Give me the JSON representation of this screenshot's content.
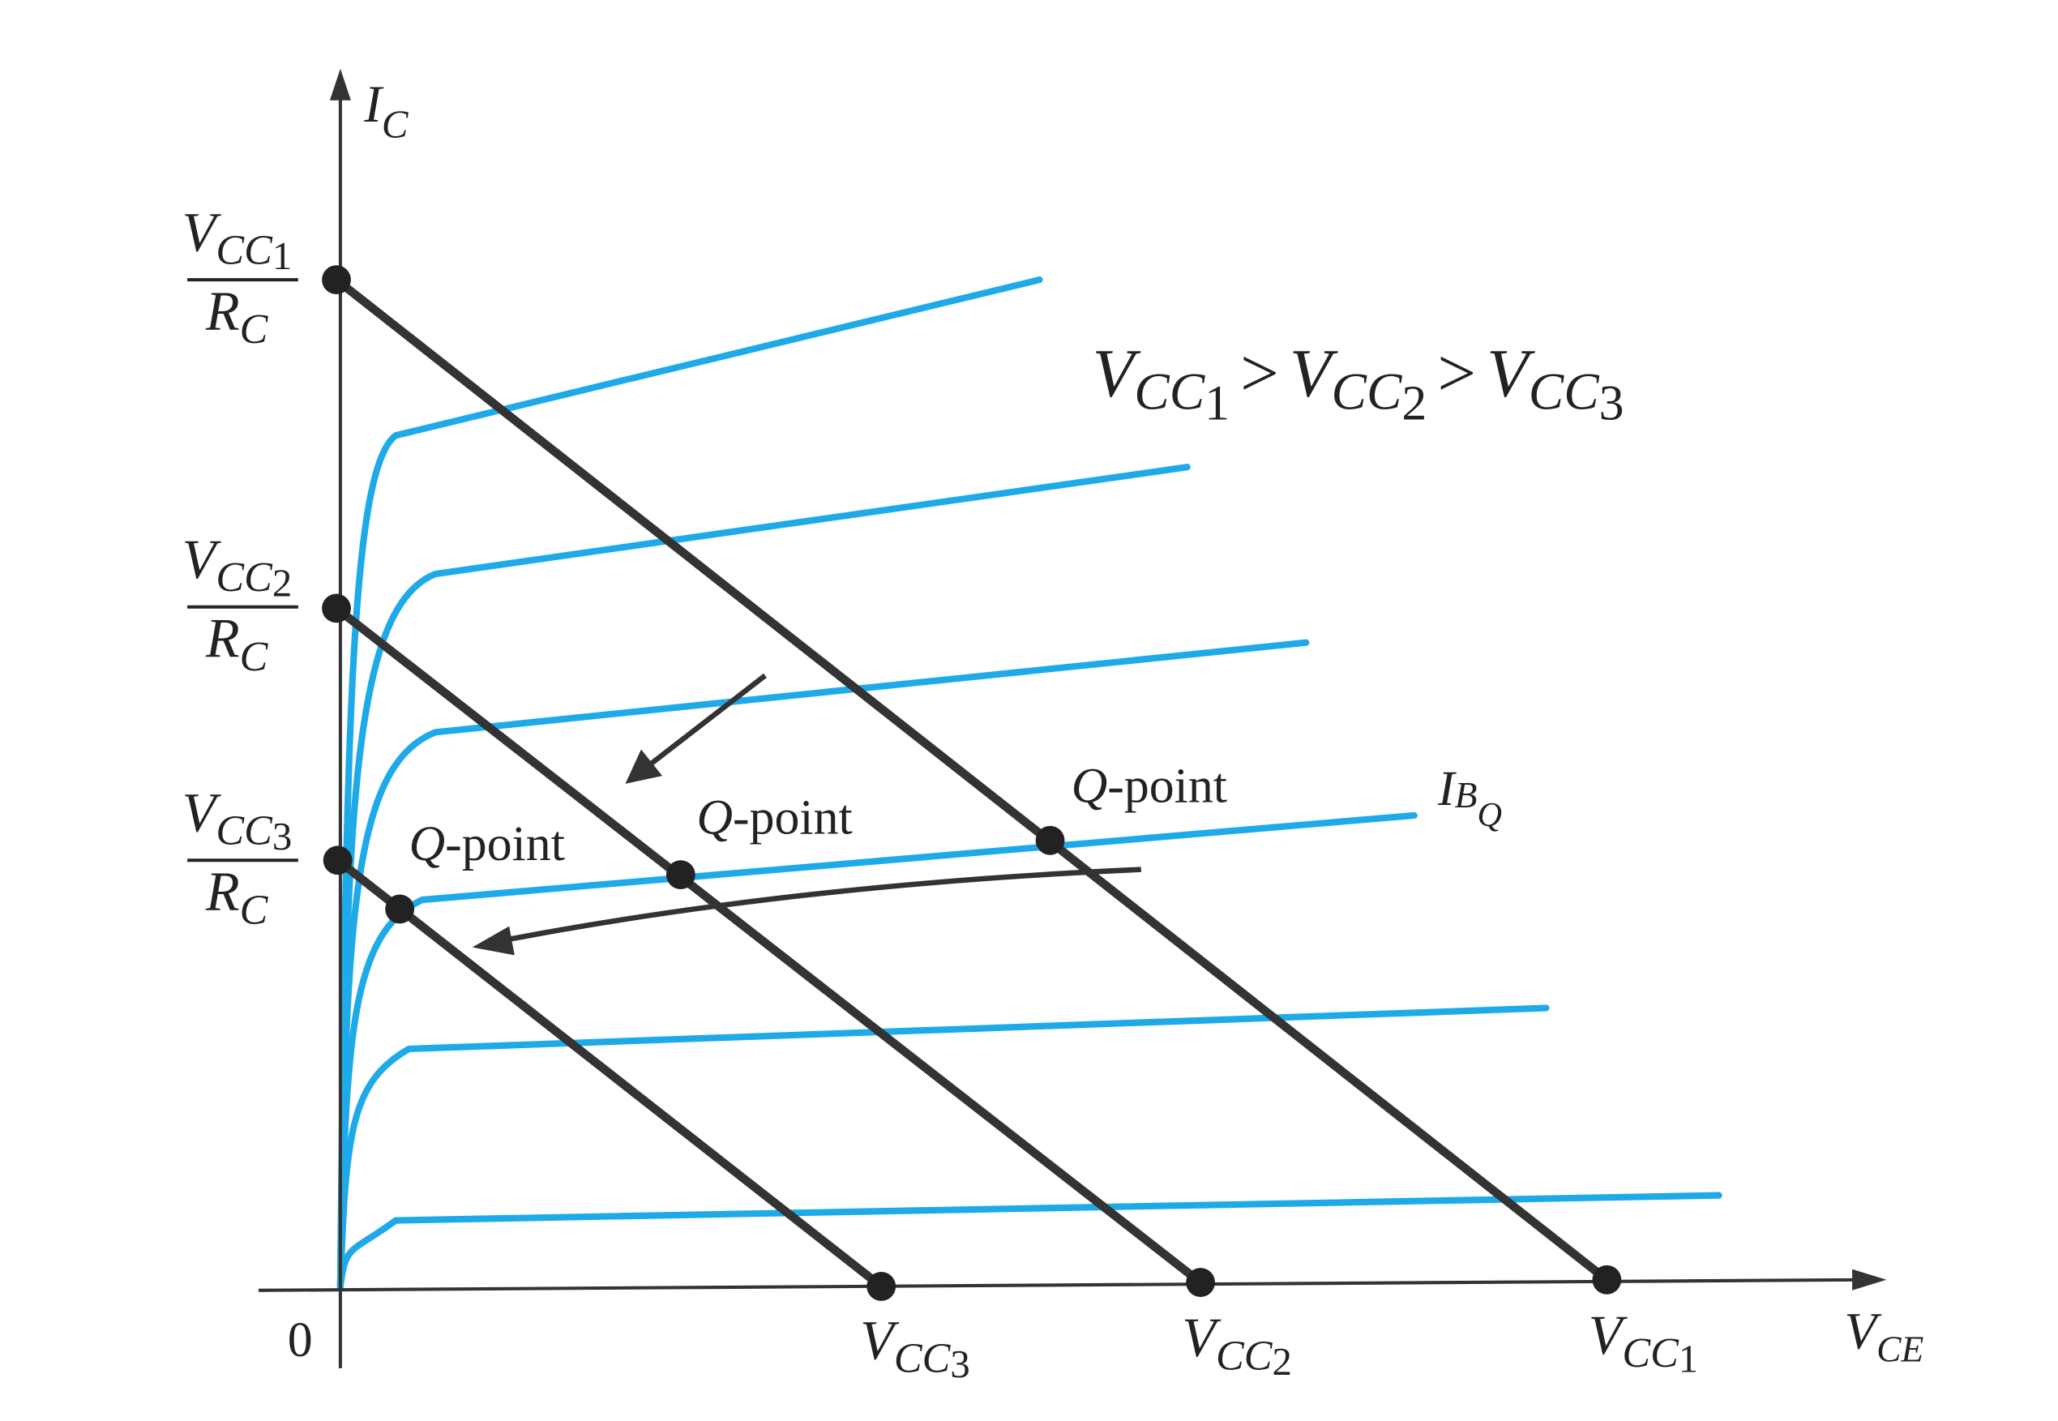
{
  "axes": {
    "y_label": {
      "symbol": "I",
      "subscript": "C"
    },
    "x_label": {
      "symbol": "V",
      "subscript": "CE"
    },
    "origin": "0"
  },
  "current_labels": [
    {
      "numerator": {
        "symbol": "V",
        "subscript": "CC",
        "index": "1"
      },
      "denominator": {
        "symbol": "R",
        "subscript": "C"
      }
    },
    {
      "numerator": {
        "symbol": "V",
        "subscript": "CC",
        "index": "2"
      },
      "denominator": {
        "symbol": "R",
        "subscript": "C"
      }
    },
    {
      "numerator": {
        "symbol": "V",
        "subscript": "CC",
        "index": "3"
      },
      "denominator": {
        "symbol": "R",
        "subscript": "C"
      }
    }
  ],
  "voltage_labels": [
    {
      "symbol": "V",
      "subscript": "CC",
      "index": "3"
    },
    {
      "symbol": "V",
      "subscript": "CC",
      "index": "2"
    },
    {
      "symbol": "V",
      "subscript": "CC",
      "index": "1"
    }
  ],
  "relation": {
    "operator": ">",
    "terms": [
      {
        "symbol": "V",
        "subscript": "CC",
        "index": "1"
      },
      {
        "symbol": "V",
        "subscript": "CC",
        "index": "2"
      },
      {
        "symbol": "V",
        "subscript": "CC",
        "index": "3"
      }
    ]
  },
  "q_point_labels": [
    {
      "letter": "Q",
      "suffix": "-point"
    },
    {
      "letter": "Q",
      "suffix": "-point"
    },
    {
      "letter": "Q",
      "suffix": "-point"
    }
  ],
  "curve_label": {
    "symbol": "I",
    "subscript": "B",
    "subsubscript": "Q"
  }
}
